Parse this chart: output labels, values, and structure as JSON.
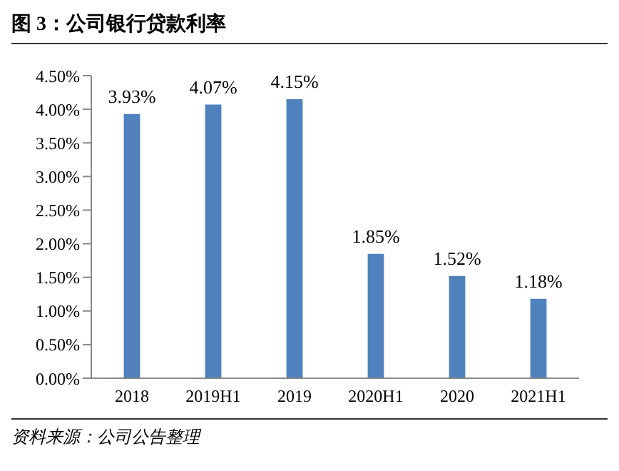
{
  "chart_data": {
    "type": "bar",
    "title": "图 3：公司银行贷款利率",
    "categories": [
      "2018",
      "2019H1",
      "2019",
      "2020H1",
      "2020",
      "2021H1"
    ],
    "values": [
      3.93,
      4.07,
      4.15,
      1.85,
      1.52,
      1.18
    ],
    "value_labels": [
      "3.93%",
      "4.07%",
      "4.15%",
      "1.85%",
      "1.52%",
      "1.18%"
    ],
    "color": "#4f81bd",
    "ylim": [
      0,
      4.5
    ],
    "yticks": [
      {
        "value": 0,
        "label": "0.00%"
      },
      {
        "value": 0.5,
        "label": "0.50%"
      },
      {
        "value": 1,
        "label": "1.00%"
      },
      {
        "value": 1.5,
        "label": "1.50%"
      },
      {
        "value": 2,
        "label": "2.00%"
      },
      {
        "value": 2.5,
        "label": "2.50%"
      },
      {
        "value": 3,
        "label": "3.00%"
      },
      {
        "value": 3.5,
        "label": "3.50%"
      },
      {
        "value": 4,
        "label": "4.00%"
      },
      {
        "value": 4.5,
        "label": "4.50%"
      }
    ],
    "grid": false,
    "annotations": [
      "资料来源：公司公告整理"
    ]
  }
}
